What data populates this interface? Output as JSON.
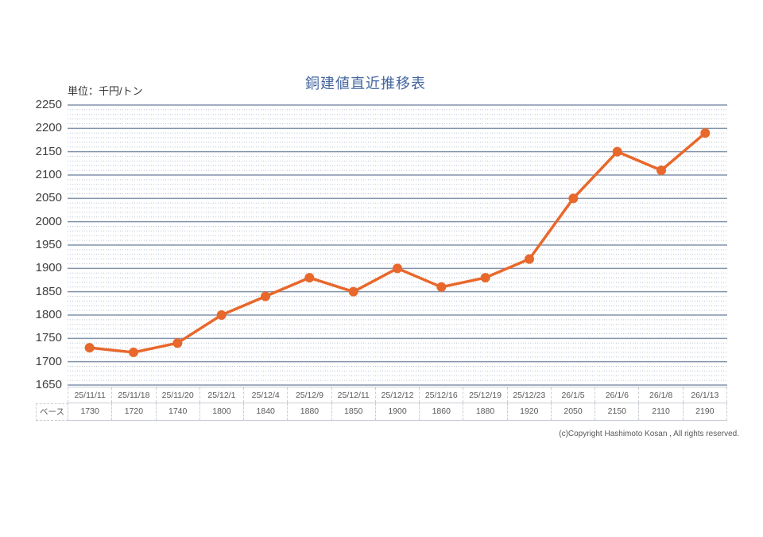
{
  "chart_data": {
    "type": "line",
    "title": "銅建値直近推移表",
    "unit_label": "単位：千円/トン",
    "categories": [
      "25/11/11",
      "25/11/18",
      "25/11/20",
      "25/12/1",
      "25/12/4",
      "25/12/9",
      "25/12/11",
      "25/12/12",
      "25/12/16",
      "25/12/19",
      "25/12/23",
      "26/1/5",
      "26/1/6",
      "26/1/8",
      "26/1/13"
    ],
    "series": [
      {
        "name": "ベース",
        "values": [
          1730,
          1720,
          1740,
          1800,
          1840,
          1880,
          1850,
          1900,
          1860,
          1880,
          1920,
          2050,
          2150,
          2110,
          2190
        ]
      }
    ],
    "ylim": [
      1650,
      2250
    ],
    "ytick_step": 50,
    "yticks": [
      1650,
      1700,
      1750,
      1800,
      1850,
      1900,
      1950,
      2000,
      2050,
      2100,
      2150,
      2200,
      2250
    ],
    "minor_tick_step": 10,
    "grid": "on",
    "legend": "none",
    "colors": {
      "line": "#E8682C",
      "major_grid": "#8293AB",
      "minor_grid": "#B9C5D6",
      "title": "#44669E",
      "axis_text": "#404040",
      "table_text": "#595959",
      "table_border": "#C9CDD4"
    }
  },
  "footer": {
    "copyright": "(c)Copyright Hashimoto Kosan , All rights reserved."
  }
}
